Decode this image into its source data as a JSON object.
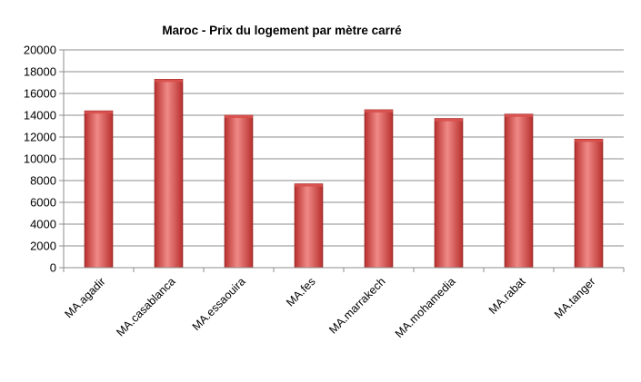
{
  "chart_data": {
    "type": "bar",
    "title": "Maroc - Prix du logement par mètre carré",
    "xlabel": "",
    "ylabel": "",
    "categories": [
      "MA.agadir",
      "MA.casablanca",
      "MA.essaouira",
      "MA.fes",
      "MA.marrakech",
      "MA.mohamedia",
      "MA.rabat",
      "MA.tanger"
    ],
    "values": [
      14400,
      17300,
      14000,
      7700,
      14500,
      13700,
      14100,
      11800
    ],
    "ylim": [
      0,
      20000
    ],
    "yticks": [
      "0",
      "2000",
      "4000",
      "6000",
      "8000",
      "10000",
      "12000",
      "14000",
      "16000",
      "18000",
      "20000"
    ],
    "grid": true,
    "legend": "none",
    "colors": {
      "bar_light": "#f08a87",
      "bar_mid": "#d9504d",
      "bar_dark": "#b8302e",
      "bar_edge": "#8e2422"
    }
  }
}
